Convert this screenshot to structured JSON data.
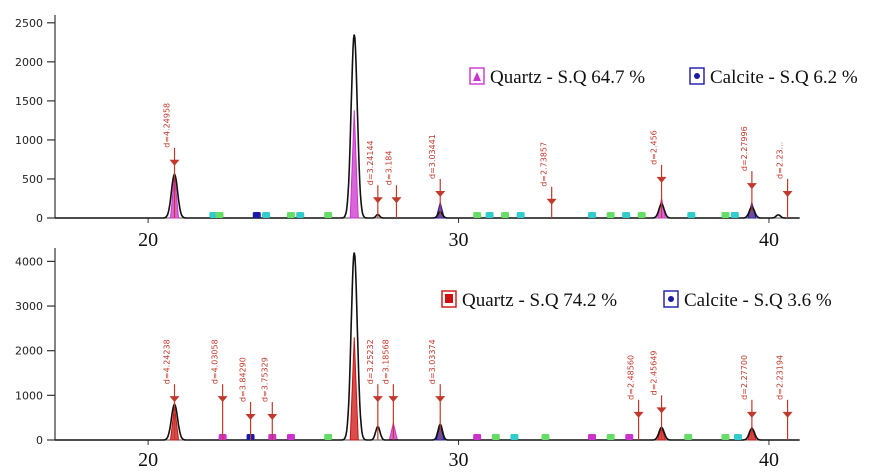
{
  "chart_data": [
    {
      "type": "line",
      "xlim": [
        17,
        41
      ],
      "ylim": [
        0,
        2600
      ],
      "y_ticks": [
        0,
        500,
        1000,
        1500,
        2000,
        2500
      ],
      "y_tick_labels": [
        "0",
        "500",
        "1000",
        "1500",
        "2000",
        "2500"
      ],
      "x_ticks": [
        20,
        30,
        40
      ],
      "x_tick_labels": [
        "20",
        "30",
        "40"
      ],
      "legend": [
        {
          "label": "Quartz - S.Q 64.7 %",
          "color": "#cc33cc",
          "marker": "triangle"
        },
        {
          "label": "Calcite - S.Q 6.2 %",
          "color": "#1a1aa6",
          "marker": "dot"
        }
      ],
      "pattern_peaks": [
        {
          "x": 20.85,
          "height": 560,
          "color": "#cc33cc"
        },
        {
          "x": 26.64,
          "height": 1380,
          "color": "#cc33cc"
        },
        {
          "x": 29.41,
          "height": 200,
          "color": "#1a1aa6"
        },
        {
          "x": 36.54,
          "height": 250,
          "color": "#cc33cc"
        },
        {
          "x": 39.45,
          "height": 200,
          "color": "#1a1aa6"
        }
      ],
      "series": [
        {
          "color": "#111111",
          "peaks": [
            {
              "x": 20.85,
              "y": 560,
              "w": 0.14
            },
            {
              "x": 26.64,
              "y": 2350,
              "w": 0.14
            },
            {
              "x": 27.4,
              "y": 45,
              "w": 0.08
            },
            {
              "x": 29.41,
              "y": 80,
              "w": 0.1
            },
            {
              "x": 36.54,
              "y": 180,
              "w": 0.12
            },
            {
              "x": 39.45,
              "y": 140,
              "w": 0.12
            },
            {
              "x": 40.3,
              "y": 40,
              "w": 0.1
            }
          ]
        }
      ],
      "minor_markers": [
        {
          "x": 22.1,
          "color": "#33cccc"
        },
        {
          "x": 22.3,
          "color": "#66dd66"
        },
        {
          "x": 23.5,
          "color": "#1a1aa6"
        },
        {
          "x": 23.8,
          "color": "#33cccc"
        },
        {
          "x": 24.6,
          "color": "#66dd66"
        },
        {
          "x": 24.9,
          "color": "#33cccc"
        },
        {
          "x": 25.8,
          "color": "#66dd66"
        },
        {
          "x": 30.6,
          "color": "#66dd66"
        },
        {
          "x": 31.0,
          "color": "#33cccc"
        },
        {
          "x": 31.5,
          "color": "#66dd66"
        },
        {
          "x": 32.0,
          "color": "#33cccc"
        },
        {
          "x": 34.3,
          "color": "#33cccc"
        },
        {
          "x": 34.9,
          "color": "#66dd66"
        },
        {
          "x": 35.4,
          "color": "#33cccc"
        },
        {
          "x": 35.9,
          "color": "#66dd66"
        },
        {
          "x": 37.5,
          "color": "#33cccc"
        },
        {
          "x": 38.6,
          "color": "#66dd66"
        },
        {
          "x": 38.9,
          "color": "#33cccc"
        }
      ],
      "annotations": [
        {
          "x": 20.85,
          "height": 900,
          "text": "d=4.24958"
        },
        {
          "x": 27.4,
          "height": 420,
          "text": "d=3.24144"
        },
        {
          "x": 28.0,
          "height": 420,
          "text": "d=3.184"
        },
        {
          "x": 29.41,
          "height": 500,
          "text": "d=3.03441"
        },
        {
          "x": 33.0,
          "height": 400,
          "text": "d=2.73857"
        },
        {
          "x": 36.54,
          "height": 680,
          "text": "d=2.456"
        },
        {
          "x": 39.45,
          "height": 600,
          "text": "d=2.27996"
        },
        {
          "x": 40.6,
          "height": 500,
          "text": "d=2.23..."
        }
      ]
    },
    {
      "type": "line",
      "xlim": [
        17,
        41
      ],
      "ylim": [
        0,
        4300
      ],
      "y_ticks": [
        0,
        1000,
        2000,
        3000,
        4000
      ],
      "y_tick_labels": [
        "0",
        "1000",
        "2000",
        "3000",
        "4000"
      ],
      "x_ticks": [
        20,
        30,
        40
      ],
      "x_tick_labels": [
        "20",
        "30",
        "40"
      ],
      "legend": [
        {
          "label": "Quartz - S.Q  74.2 %",
          "color": "#cc1111",
          "marker": "square"
        },
        {
          "label": "Calcite - S.Q  3.6 %",
          "color": "#1a1aa6",
          "marker": "dot"
        }
      ],
      "pattern_peaks": [
        {
          "x": 20.85,
          "height": 760,
          "color": "#cc1111"
        },
        {
          "x": 26.64,
          "height": 2300,
          "color": "#cc1111"
        },
        {
          "x": 27.9,
          "height": 380,
          "color": "#cc33cc"
        },
        {
          "x": 29.41,
          "height": 350,
          "color": "#1a1aa6"
        },
        {
          "x": 36.54,
          "height": 300,
          "color": "#cc1111"
        },
        {
          "x": 39.45,
          "height": 300,
          "color": "#cc1111"
        }
      ],
      "series": [
        {
          "color": "#111111",
          "peaks": [
            {
              "x": 20.85,
              "y": 800,
              "w": 0.14
            },
            {
              "x": 26.64,
              "y": 4200,
              "w": 0.14
            },
            {
              "x": 27.4,
              "y": 300,
              "w": 0.1
            },
            {
              "x": 29.41,
              "y": 350,
              "w": 0.1
            },
            {
              "x": 36.54,
              "y": 280,
              "w": 0.12
            },
            {
              "x": 39.45,
              "y": 260,
              "w": 0.12
            }
          ]
        }
      ],
      "minor_markers": [
        {
          "x": 22.4,
          "color": "#cc33cc"
        },
        {
          "x": 23.3,
          "color": "#1a1aa6"
        },
        {
          "x": 24.0,
          "color": "#cc33cc"
        },
        {
          "x": 24.6,
          "color": "#cc33cc"
        },
        {
          "x": 25.8,
          "color": "#66dd66"
        },
        {
          "x": 30.6,
          "color": "#cc33cc"
        },
        {
          "x": 31.2,
          "color": "#66dd66"
        },
        {
          "x": 31.8,
          "color": "#33cccc"
        },
        {
          "x": 32.8,
          "color": "#66dd66"
        },
        {
          "x": 34.3,
          "color": "#cc33cc"
        },
        {
          "x": 34.9,
          "color": "#66dd66"
        },
        {
          "x": 35.5,
          "color": "#cc33cc"
        },
        {
          "x": 37.4,
          "color": "#66dd66"
        },
        {
          "x": 38.6,
          "color": "#66dd66"
        },
        {
          "x": 39.0,
          "color": "#33cccc"
        }
      ],
      "annotations": [
        {
          "x": 20.85,
          "height": 1250,
          "text": "d=4.24238"
        },
        {
          "x": 22.4,
          "height": 1250,
          "text": "d=4.03058"
        },
        {
          "x": 23.3,
          "height": 850,
          "text": "d=3.84290"
        },
        {
          "x": 24.0,
          "height": 850,
          "text": "d=3.75329"
        },
        {
          "x": 27.4,
          "height": 1250,
          "text": "d=3.25232"
        },
        {
          "x": 27.9,
          "height": 1250,
          "text": "d=3.18568"
        },
        {
          "x": 29.41,
          "height": 1250,
          "text": "d=3.03374"
        },
        {
          "x": 35.8,
          "height": 900,
          "text": "d=2.48560"
        },
        {
          "x": 36.54,
          "height": 1000,
          "text": "d=2.45649"
        },
        {
          "x": 39.45,
          "height": 900,
          "text": "d=2.27700"
        },
        {
          "x": 40.6,
          "height": 900,
          "text": "d=2.23194"
        }
      ]
    }
  ]
}
